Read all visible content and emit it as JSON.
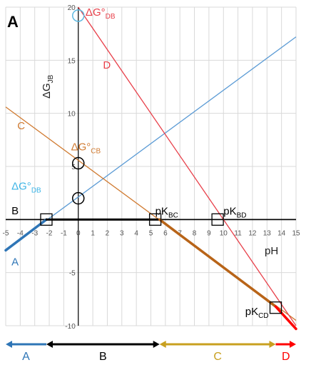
{
  "chart_data": {
    "type": "line",
    "panel_label": "A",
    "xlabel": "pH",
    "ylabel": "ΔG",
    "ylabel_sub": "JB",
    "xlim": [
      -5,
      15
    ],
    "ylim": [
      -10,
      20
    ],
    "xticks": [
      -5,
      -4,
      -3,
      -2,
      -1,
      0,
      1,
      2,
      3,
      4,
      5,
      6,
      7,
      8,
      9,
      10,
      11,
      12,
      13,
      14,
      15
    ],
    "yticks": [
      -10,
      -5,
      5,
      10,
      15,
      20
    ],
    "grid": true,
    "series": [
      {
        "name": "A",
        "color": "#5b9bd5",
        "points": [
          [
            -5,
            -2.9
          ],
          [
            15,
            17.2
          ]
        ]
      },
      {
        "name": "B",
        "color": "#000000",
        "points": [
          [
            -5,
            0
          ],
          [
            15,
            0
          ]
        ]
      },
      {
        "name": "C",
        "color": "#d07a30",
        "points": [
          [
            -5,
            10.6
          ],
          [
            15,
            -9.5
          ]
        ]
      },
      {
        "name": "D",
        "color": "#e8404a",
        "points": [
          [
            0,
            20
          ],
          [
            15,
            -10
          ]
        ]
      }
    ],
    "emphasized_segments": [
      {
        "series": "A",
        "color": "#2e75b6",
        "from": [
          -5,
          -2.9
        ],
        "to": [
          -2.2,
          0
        ]
      },
      {
        "series": "B",
        "color": "#000000",
        "from": [
          -2.2,
          0
        ],
        "to": [
          5.6,
          0
        ]
      },
      {
        "series": "C",
        "color": "#b86418",
        "from": [
          5.6,
          0
        ],
        "to": [
          13.6,
          -8.2
        ]
      },
      {
        "series": "D",
        "color": "#ff0000",
        "from": [
          13.6,
          -8.2
        ],
        "to": [
          15,
          -10.3
        ]
      }
    ],
    "circle_markers": [
      {
        "x": 0,
        "y": 19.2,
        "color": "#5bb8e0"
      },
      {
        "x": 0,
        "y": 5.3,
        "color": "#000000"
      },
      {
        "x": 0,
        "y": 2,
        "color": "#000000"
      }
    ],
    "square_markers": [
      {
        "x": -2.2,
        "y": 0
      },
      {
        "x": 5.3,
        "y": 0
      },
      {
        "x": 9.6,
        "y": 0
      },
      {
        "x": 13.6,
        "y": -8.3
      }
    ],
    "annotations": [
      {
        "text": "ΔG°",
        "sub": "DB",
        "color": "#e8404a",
        "x": 0.5,
        "y": 19.2
      },
      {
        "text": "D",
        "sub": "",
        "color": "#e8404a",
        "x": 1.7,
        "y": 14.2
      },
      {
        "text": "C",
        "sub": "",
        "color": "#d07a30",
        "x": -4.2,
        "y": 8.5
      },
      {
        "text": "ΔG°",
        "sub": "CB",
        "color": "#d07a30",
        "x": -0.5,
        "y": 6.5
      },
      {
        "text": "ΔG°",
        "sub": "DB",
        "color": "#3cb4e6",
        "x": -4.6,
        "y": 2.8
      },
      {
        "text": "B",
        "sub": "",
        "color": "#000000",
        "x": -4.6,
        "y": 0.5
      },
      {
        "text": "pK",
        "sub": "BC",
        "color": "#000000",
        "x": 5.3,
        "y": 0.45
      },
      {
        "text": "pK",
        "sub": "BD",
        "color": "#000000",
        "x": 10.0,
        "y": 0.45
      },
      {
        "text": "A",
        "sub": "",
        "color": "#2e75b6",
        "x": -4.6,
        "y": -4.3
      },
      {
        "text": "pK",
        "sub": "CD",
        "color": "#000000",
        "x": 11.5,
        "y": -9.0
      }
    ],
    "range_arrows": [
      {
        "label": "A",
        "color": "#2e75b6",
        "from": -5,
        "to": -2.2,
        "heads": "left"
      },
      {
        "label": "B",
        "color": "#000000",
        "from": -2.2,
        "to": 5.6,
        "heads": "both"
      },
      {
        "label": "C",
        "color": "#c8a020",
        "from": 5.6,
        "to": 13.6,
        "heads": "both"
      },
      {
        "label": "D",
        "color": "#ff0000",
        "from": 13.6,
        "to": 15,
        "heads": "right"
      }
    ]
  }
}
